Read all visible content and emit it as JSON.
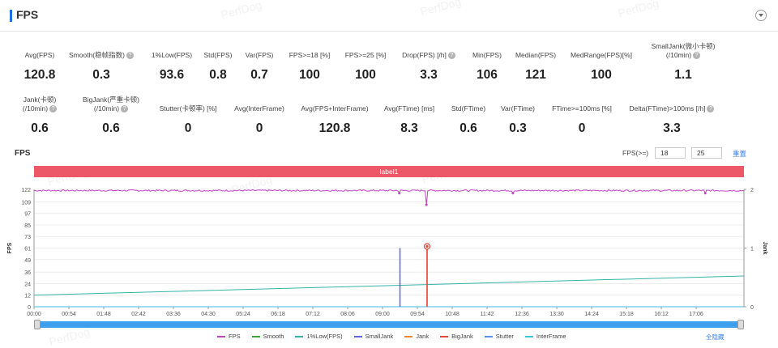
{
  "header": {
    "title": "FPS"
  },
  "watermark": "PerfDog",
  "metrics_row1": [
    {
      "label": "Avg(FPS)",
      "value": "120.8",
      "help": false
    },
    {
      "label": "Smooth(稳帧指数)",
      "value": "0.3",
      "help": true
    },
    {
      "label": "1%Low(FPS)",
      "value": "93.6",
      "help": false
    },
    {
      "label": "Std(FPS)",
      "value": "0.8",
      "help": false
    },
    {
      "label": "Var(FPS)",
      "value": "0.7",
      "help": false
    },
    {
      "label": "FPS>=18 [%]",
      "value": "100",
      "help": false
    },
    {
      "label": "FPS>=25 [%]",
      "value": "100",
      "help": false
    },
    {
      "label": "Drop(FPS) [/h]",
      "value": "3.3",
      "help": true
    },
    {
      "label": "Min(FPS)",
      "value": "106",
      "help": false
    },
    {
      "label": "Median(FPS)",
      "value": "121",
      "help": false
    },
    {
      "label": "MedRange(FPS)[%]",
      "value": "100",
      "help": false
    },
    {
      "label": "SmallJank(微小卡顿)",
      "label2": "(/10min)",
      "value": "1.1",
      "help": true
    }
  ],
  "metrics_row2": [
    {
      "label": "Jank(卡顿)",
      "label2": "(/10min)",
      "value": "0.6",
      "help": true
    },
    {
      "label": "BigJank(严重卡顿)",
      "label2": "(/10min)",
      "value": "0.6",
      "help": true
    },
    {
      "label": "Stutter(卡顿率) [%]",
      "value": "0",
      "help": false
    },
    {
      "label": "Avg(InterFrame)",
      "value": "0",
      "help": false
    },
    {
      "label": "Avg(FPS+InterFrame)",
      "value": "120.8",
      "help": false
    },
    {
      "label": "Avg(FTime) [ms]",
      "value": "8.3",
      "help": false
    },
    {
      "label": "Std(FTime)",
      "value": "0.6",
      "help": false
    },
    {
      "label": "Var(FTime)",
      "value": "0.3",
      "help": false
    },
    {
      "label": "FTime>=100ms [%]",
      "value": "0",
      "help": false
    },
    {
      "label": "Delta(FTime)>100ms [/h]",
      "value": "3.3",
      "help": true
    }
  ],
  "chart_section": {
    "title": "FPS",
    "threshold_label": "FPS(>=)",
    "threshold_1": "18",
    "threshold_2": "25",
    "reset_label": "重置",
    "band_label": "label1",
    "hide_all_label": "全隐藏"
  },
  "chart_data": {
    "type": "line",
    "title": "",
    "xlabel": "",
    "ylabel": "FPS",
    "y2label": "Jank",
    "x_ticks": [
      "00:00",
      "00:54",
      "01:48",
      "02:42",
      "03:36",
      "04:30",
      "05:24",
      "06:18",
      "07:12",
      "08:06",
      "09:00",
      "09:54",
      "10:48",
      "11:42",
      "12:36",
      "13:30",
      "14:24",
      "15:18",
      "16:12",
      "17:06"
    ],
    "x_range_seconds": [
      0,
      1100
    ],
    "y_ticks": [
      0,
      12,
      24,
      36,
      49,
      61,
      73,
      85,
      97,
      109,
      122
    ],
    "ylim": [
      0,
      122
    ],
    "y2_ticks": [
      0,
      1,
      2
    ],
    "y2lim": [
      0,
      2
    ],
    "series": [
      {
        "name": "FPS",
        "color": "#c244c7",
        "axis": "left",
        "base": 120.8,
        "dips": [
          {
            "t": 608,
            "v": 106
          },
          {
            "t": 566,
            "v": 118
          },
          {
            "t": 742,
            "v": 118
          },
          {
            "t": 1040,
            "v": 118
          }
        ]
      },
      {
        "name": "Smooth",
        "color": "#3aaa35",
        "axis": "left",
        "constant": 0
      },
      {
        "name": "1%Low(FPS)",
        "color": "#36b3a8",
        "axis": "left",
        "start": 12,
        "end": 32
      },
      {
        "name": "SmallJank",
        "color": "#5b63f0",
        "axis": "right",
        "spikes": [
          {
            "t": 567,
            "v": 1
          }
        ]
      },
      {
        "name": "Jank",
        "color": "#f08a3c",
        "axis": "right",
        "spikes": [
          {
            "t": 609,
            "v": 1
          }
        ]
      },
      {
        "name": "BigJank",
        "color": "#e6463c",
        "axis": "right",
        "spikes": [
          {
            "t": 609,
            "v": 1
          }
        ]
      },
      {
        "name": "Stutter",
        "color": "#5b8ff0",
        "axis": "left",
        "constant": 0
      },
      {
        "name": "InterFrame",
        "color": "#3cc4e6",
        "axis": "left",
        "constant": 0
      }
    ],
    "grid": true,
    "legend_position": "bottom"
  }
}
